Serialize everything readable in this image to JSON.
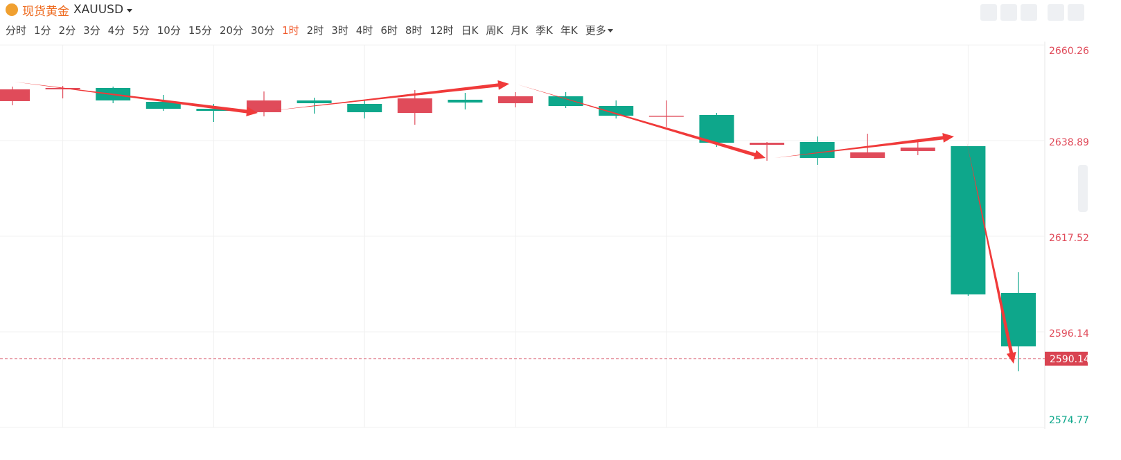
{
  "header": {
    "title": "现货黄金",
    "symbol": "XAUUSD",
    "timeframes": [
      "分时",
      "1分",
      "2分",
      "3分",
      "4分",
      "5分",
      "10分",
      "15分",
      "20分",
      "30分",
      "1时",
      "2时",
      "3时",
      "4时",
      "6时",
      "8时",
      "12时",
      "日K",
      "周K",
      "月K",
      "季K",
      "年K",
      "更多"
    ],
    "active_timeframe": 10
  },
  "chart_data": {
    "type": "candlestick",
    "up_color": "#e04b5a",
    "down_color": "#0ea78b",
    "ylim": [
      2574.77,
      2660.26
    ],
    "yticks": [
      {
        "value": 2660.26,
        "label": "2660.26"
      },
      {
        "value": 2638.89,
        "label": "2638.89"
      },
      {
        "value": 2617.52,
        "label": "2617.52"
      },
      {
        "value": 2596.14,
        "label": "2596.14"
      },
      {
        "value": 2574.77,
        "label": "2574.77"
      }
    ],
    "current_price": {
      "value": 2590.14,
      "label": "2590.14"
    },
    "open": [
      2647.72,
      2650.35,
      2650.66,
      2647.56,
      2646.01,
      2645.24,
      2647.87,
      2647.1,
      2645.08,
      2648.03,
      2647.25,
      2648.8,
      2646.63,
      2644.31,
      2644.62,
      2637.96,
      2638.58,
      2635.02,
      2636.57,
      2637.65,
      2604.82
    ],
    "high": [
      2650.97,
      2651.12,
      2650.97,
      2649.11,
      2647.1,
      2649.88,
      2648.49,
      2648.03,
      2650.19,
      2649.57,
      2649.73,
      2649.73,
      2647.87,
      2647.87,
      2645.08,
      2638.58,
      2639.82,
      2640.44,
      2638.58,
      2637.65,
      2609.46
    ],
    "low": [
      2646.79,
      2648.33,
      2647.25,
      2645.55,
      2643.07,
      2644.31,
      2644.93,
      2643.84,
      2642.45,
      2645.86,
      2646.32,
      2646.17,
      2643.84,
      2641.99,
      2637.49,
      2634.4,
      2633.47,
      2635.02,
      2635.64,
      2604.2,
      2587.32
    ],
    "close": [
      2650.35,
      2650.66,
      2647.87,
      2646.01,
      2645.55,
      2647.87,
      2647.25,
      2645.24,
      2648.33,
      2647.41,
      2648.8,
      2646.63,
      2644.46,
      2644.46,
      2638.42,
      2638.42,
      2635.02,
      2636.26,
      2637.34,
      2604.51,
      2592.89
    ]
  }
}
